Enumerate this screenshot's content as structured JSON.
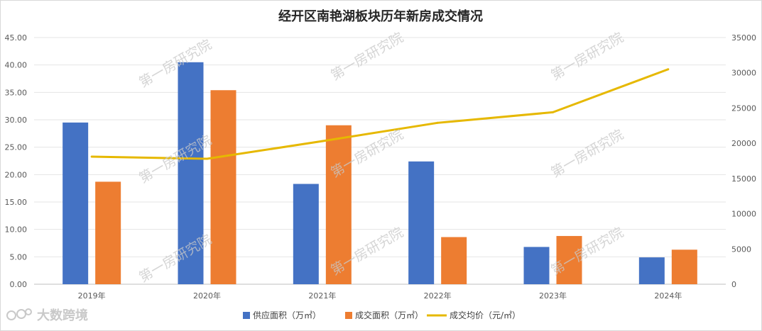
{
  "chart_data": {
    "type": "bar",
    "title": "经开区南艳湖板块历年新房成交情况",
    "categories": [
      "2019年",
      "2020年",
      "2021年",
      "2022年",
      "2023年",
      "2024年"
    ],
    "series": [
      {
        "name": "供应面积（万㎡）",
        "type": "bar",
        "axis": "left",
        "color": "#4472C4",
        "values": [
          29.5,
          40.5,
          18.3,
          22.4,
          6.8,
          4.9
        ]
      },
      {
        "name": "成交面积（万㎡）",
        "type": "bar",
        "axis": "left",
        "color": "#ED7D31",
        "values": [
          18.7,
          35.4,
          29.0,
          8.6,
          8.8,
          6.3
        ]
      },
      {
        "name": "成交均价（元/㎡）",
        "type": "line",
        "axis": "right",
        "color": "#E6B800",
        "values": [
          18100,
          17800,
          20300,
          22900,
          24400,
          30500
        ]
      }
    ],
    "left_axis": {
      "min": 0,
      "max": 45,
      "step": 5,
      "decimals": 2
    },
    "right_axis": {
      "min": 0,
      "max": 35000,
      "step": 5000,
      "decimals": 0
    },
    "grid": true,
    "legend_position": "bottom"
  },
  "watermark": {
    "text": "第一房研究院"
  },
  "logo": {
    "text": "大数跨境"
  }
}
